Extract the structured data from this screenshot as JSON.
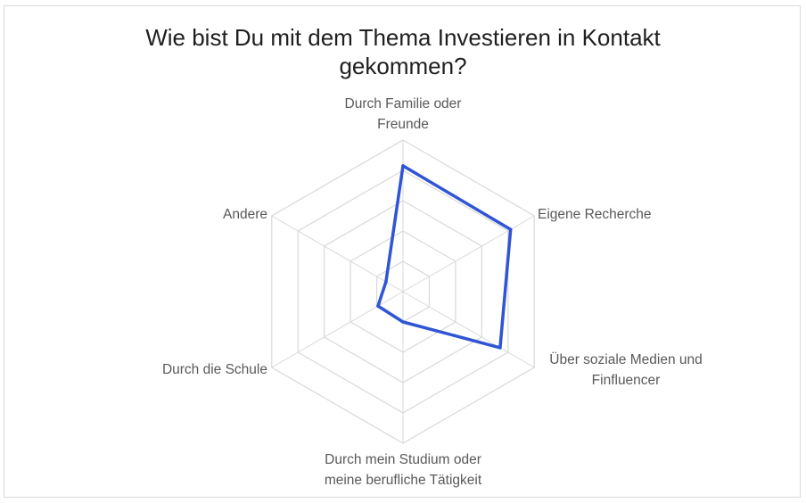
{
  "chart_data": {
    "type": "radar",
    "title_lines": [
      "Wie bist Du mit dem Thema Investieren in Kontakt",
      "gekommen?"
    ],
    "categories": [
      [
        "Durch Familie oder",
        "Freunde"
      ],
      [
        "Eigene Recherche"
      ],
      [
        "Über soziale Medien und",
        "Finfluencer"
      ],
      [
        "Durch mein Studium oder",
        "meine berufliche Tätigkeit"
      ],
      [
        "Durch die Schule"
      ],
      [
        "Andere"
      ]
    ],
    "values": [
      0.83,
      0.82,
      0.74,
      0.2,
      0.19,
      0.13
    ],
    "rlim": [
      0,
      1
    ],
    "grid_rings": 5,
    "grid": true,
    "legend": "none",
    "series_color": "#2f55d4",
    "grid_color": "#d9d9d9"
  }
}
